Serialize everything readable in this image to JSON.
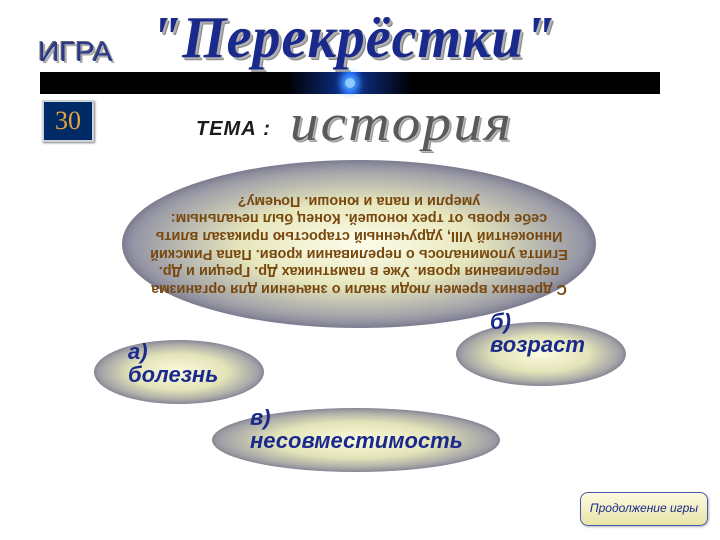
{
  "header": {
    "game_label": "ИГРА",
    "title": "\"Перекрёстки\"",
    "tema_label": "ТЕМА :",
    "category": "история"
  },
  "score": {
    "value": "30"
  },
  "question": {
    "text": "С древних времен люди знали о значении для организма переливания крови. Уже в памятниках Др. Греции и Др. Египта упоминалось о переливании крови. Папа Римский Иннокентий VIII, удрученный старостью приказал влить себе кровь от трех юношей. Конец был печальным: умерли и папа и юноши. Почему?"
  },
  "answers": {
    "a": {
      "key": "а)",
      "text": "болезнь"
    },
    "b": {
      "key": "б)",
      "text": "возраст"
    },
    "v": {
      "key": "в)",
      "text": "несовместимость"
    }
  },
  "controls": {
    "continue": "Продолжение игры"
  },
  "colors": {
    "title_color": "#1a2a8c",
    "question_text_color": "#78480e",
    "score_bg": "#002a66",
    "score_fg": "#e8a438"
  }
}
